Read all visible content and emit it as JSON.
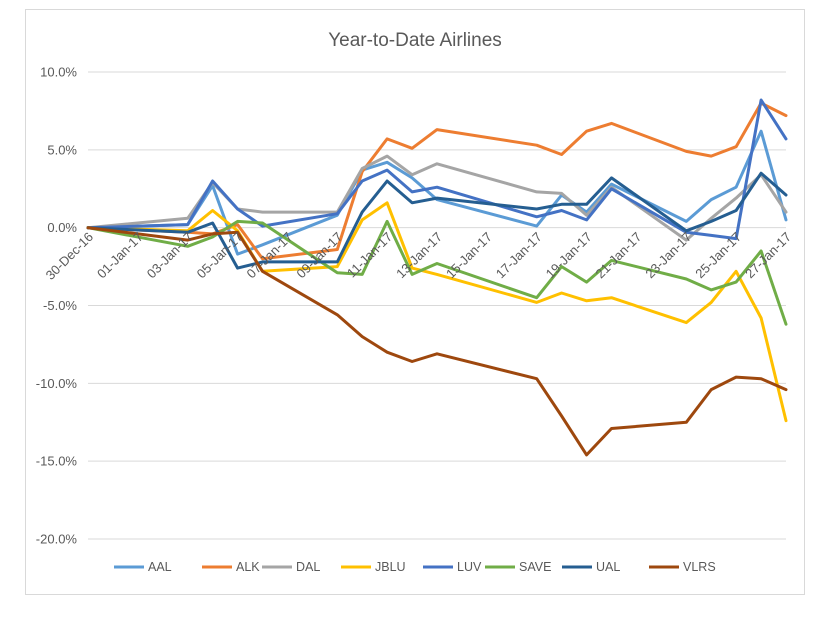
{
  "chart_data": {
    "type": "line",
    "title": "Year-to-Date Airlines",
    "xlabel": "",
    "ylabel": "",
    "x_categories": [
      "30-Dec-16",
      "03-Jan-17",
      "04-Jan-17",
      "05-Jan-17",
      "06-Jan-17",
      "09-Jan-17",
      "10-Jan-17",
      "11-Jan-17",
      "12-Jan-17",
      "13-Jan-17",
      "17-Jan-17",
      "18-Jan-17",
      "19-Jan-17",
      "20-Jan-17",
      "23-Jan-17",
      "24-Jan-17",
      "25-Jan-17",
      "26-Jan-17",
      "27-Jan-17"
    ],
    "x_days": [
      0,
      4,
      5,
      6,
      7,
      10,
      11,
      12,
      13,
      14,
      18,
      19,
      20,
      21,
      24,
      25,
      26,
      27,
      28
    ],
    "x_tick_labels": [
      "30-Dec-16",
      "01-Jan-17",
      "03-Jan-17",
      "05-Jan-17",
      "07-Jan-17",
      "09-Jan-17",
      "11-Jan-17",
      "13-Jan-17",
      "15-Jan-17",
      "17-Jan-17",
      "19-Jan-17",
      "21-Jan-17",
      "23-Jan-17",
      "25-Jan-17",
      "27-Jan-17"
    ],
    "y_tick_labels": [
      "10.0%",
      "5.0%",
      "0.0%",
      "-5.0%",
      "-10.0%",
      "-15.0%",
      "-20.0%"
    ],
    "ylim": [
      -20,
      10
    ],
    "y_unit": "%",
    "grid": "horizontal",
    "legend_position": "bottom",
    "series": [
      {
        "name": "AAL",
        "color": "#5B9BD5",
        "values": [
          0,
          0.2,
          2.7,
          -1.7,
          -1.1,
          0.8,
          3.7,
          4.2,
          3.2,
          1.8,
          0.1,
          2.1,
          1.0,
          2.8,
          0.4,
          1.8,
          2.6,
          6.2,
          0.5
        ]
      },
      {
        "name": "ALK",
        "color": "#ED7D31",
        "values": [
          0,
          -0.3,
          -0.4,
          0.2,
          -2.0,
          -1.4,
          3.6,
          5.7,
          5.1,
          6.3,
          5.3,
          4.7,
          6.2,
          6.7,
          4.9,
          4.6,
          5.2,
          8.0,
          7.2
        ]
      },
      {
        "name": "DAL",
        "color": "#A5A5A5",
        "values": [
          0,
          0.6,
          2.9,
          1.2,
          1.0,
          1.0,
          3.8,
          4.6,
          3.4,
          4.1,
          2.3,
          2.2,
          0.8,
          2.6,
          -0.8,
          0.6,
          1.9,
          3.4,
          1.0
        ]
      },
      {
        "name": "JBLU",
        "color": "#FFC000",
        "values": [
          0,
          -0.2,
          1.1,
          -0.2,
          -2.8,
          -2.5,
          0.5,
          1.6,
          -2.6,
          -3.0,
          -4.8,
          -4.2,
          -4.7,
          -4.5,
          -6.1,
          -4.8,
          -2.8,
          -5.8,
          -12.4
        ]
      },
      {
        "name": "LUV",
        "color": "#4472C4",
        "values": [
          0,
          0.2,
          3.0,
          1.2,
          0.1,
          0.9,
          3.0,
          3.7,
          2.3,
          2.6,
          0.7,
          1.1,
          0.5,
          2.5,
          -0.3,
          -0.5,
          -0.7,
          8.2,
          5.7
        ]
      },
      {
        "name": "SAVE",
        "color": "#70AD47",
        "values": [
          0,
          -1.2,
          -0.6,
          0.4,
          0.3,
          -2.9,
          -3.0,
          0.4,
          -3.0,
          -2.3,
          -4.5,
          -2.5,
          -3.5,
          -2.1,
          -3.3,
          -4.0,
          -3.5,
          -1.5,
          -6.2
        ]
      },
      {
        "name": "UAL",
        "color": "#255E91",
        "values": [
          0,
          -0.3,
          0.3,
          -2.6,
          -2.2,
          -2.2,
          1.0,
          3.0,
          1.6,
          1.9,
          1.2,
          1.5,
          1.5,
          3.2,
          -0.2,
          0.4,
          1.1,
          3.5,
          2.1
        ]
      },
      {
        "name": "VLRS",
        "color": "#9E480E",
        "values": [
          0,
          -0.8,
          -0.4,
          -0.3,
          -2.8,
          -5.6,
          -7.0,
          -8.0,
          -8.6,
          -8.1,
          -9.7,
          -12.1,
          -14.6,
          -12.9,
          -12.5,
          -10.4,
          -9.6,
          -9.7,
          -10.4
        ]
      }
    ]
  }
}
